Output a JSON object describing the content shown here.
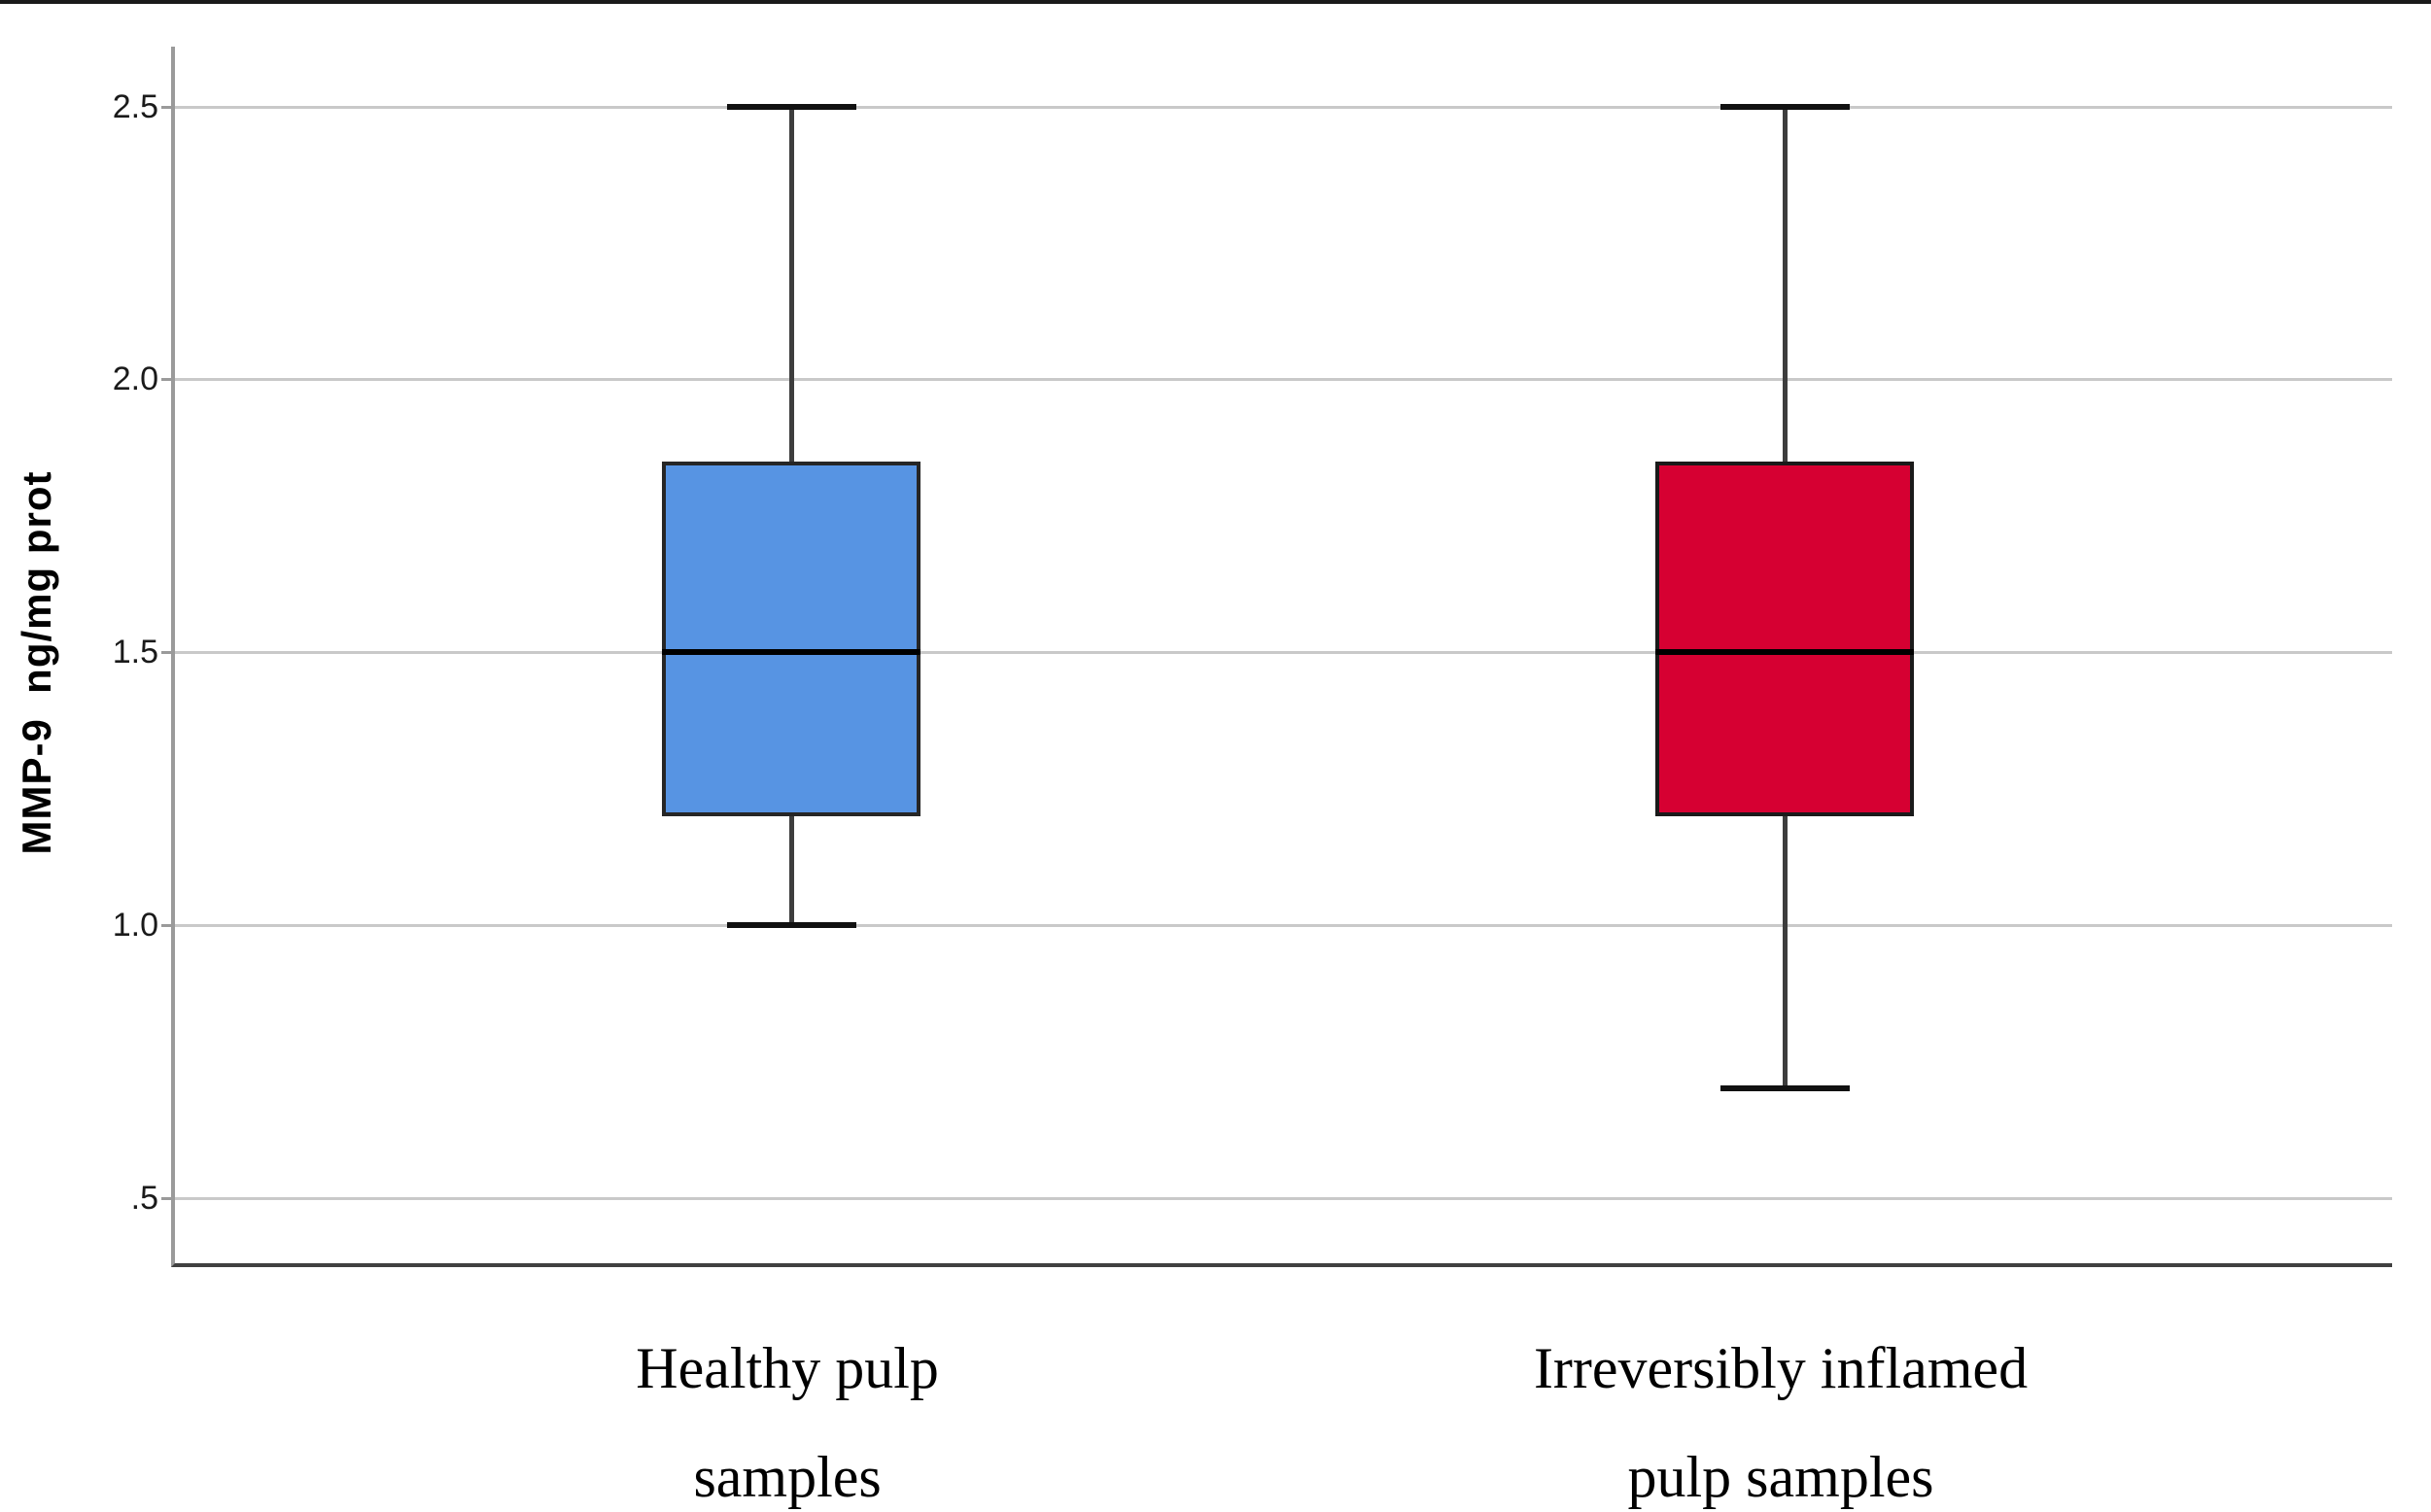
{
  "figure": {
    "kind": "statistical boxplot figure",
    "background": "#ffffff"
  },
  "chart_data": {
    "type": "boxplot",
    "title": "",
    "xlabel": "",
    "ylabel": "MMP-9  ng/mg prot",
    "ylim": [
      0.38,
      2.61
    ],
    "grid": true,
    "legend_position": "none",
    "yticks": [
      {
        "value": 2.5,
        "label": "2.5"
      },
      {
        "value": 2.0,
        "label": "2.0"
      },
      {
        "value": 1.5,
        "label": "1.5"
      },
      {
        "value": 1.0,
        "label": "1.0"
      },
      {
        "value": 0.5,
        "label": ".5"
      }
    ],
    "series": [
      {
        "name": "Healthy pulp samples",
        "label_lines": [
          "Healthy pulp",
          "samples"
        ],
        "min": 1.0,
        "q1": 1.2,
        "median": 1.5,
        "q3": 1.85,
        "max": 2.5,
        "fill_color": "#5794e3",
        "border_color": "#262626"
      },
      {
        "name": "Irreversibly inflamed pulp samples",
        "label_lines": [
          "Irreversibly inflamed",
          "pulp samples"
        ],
        "min": 0.7,
        "q1": 1.2,
        "median": 1.5,
        "q3": 1.85,
        "max": 2.5,
        "fill_color": "#d60032",
        "border_color": "#1a1a1a"
      }
    ],
    "colors": {
      "gridline": "#c9c9c9",
      "y_axis_line": "#9a9a9a",
      "x_axis_line": "#404040",
      "whisker": "#3d3d3d",
      "whisker_cap": "#111111",
      "median": "#000000",
      "text": "#000000"
    }
  }
}
